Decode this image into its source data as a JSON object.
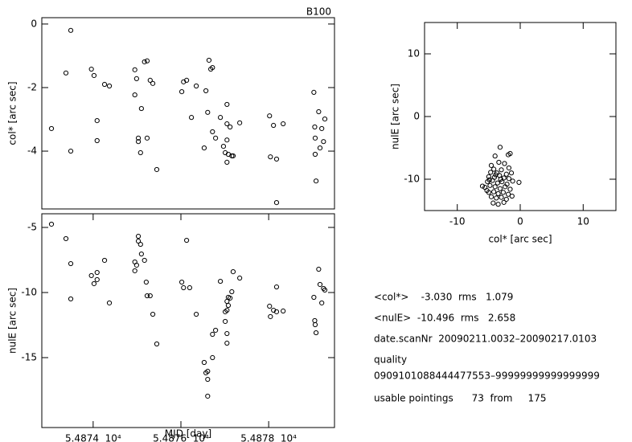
{
  "chart_data": [
    {
      "type": "scatter",
      "title": "B100",
      "y_label": "col* [arc sec]",
      "x": [
        54873.05,
        54873.38,
        54873.49,
        54873.49,
        54873.96,
        54874.02,
        54874.09,
        54874.09,
        54874.26,
        54874.37,
        54874.95,
        54874.95,
        54874.99,
        54875.03,
        54875.03,
        54875.08,
        54875.1,
        54875.17,
        54875.23,
        54875.23,
        54875.3,
        54875.36,
        54875.45,
        54876.02,
        54876.06,
        54876.13,
        54876.24,
        54876.35,
        54876.53,
        54876.57,
        54876.61,
        54876.64,
        54876.68,
        54876.72,
        54876.72,
        54876.79,
        54876.9,
        54876.97,
        54877.01,
        54877.05,
        54877.05,
        54877.05,
        54877.05,
        54877.08,
        54877.12,
        54877.16,
        54877.19,
        54877.34,
        54878.02,
        54878.04,
        54878.11,
        54878.18,
        54878.18,
        54878.33,
        54879.03,
        54879.05,
        54879.06,
        54879.06,
        54879.08,
        54879.14,
        54879.17,
        54879.21,
        54879.25,
        54879.28
      ],
      "values": [
        -3.29,
        -1.54,
        -0.2,
        -4.0,
        -1.42,
        -1.62,
        -3.04,
        -3.67,
        -1.9,
        -1.95,
        -1.44,
        -2.23,
        -1.72,
        -3.59,
        -3.7,
        -4.05,
        -2.66,
        -1.19,
        -1.16,
        -3.59,
        -1.77,
        -1.87,
        -4.58,
        -2.13,
        -1.82,
        -1.77,
        -2.94,
        -1.95,
        -3.9,
        -2.1,
        -2.78,
        -1.14,
        -1.42,
        -1.37,
        -3.39,
        -3.59,
        -2.94,
        -3.85,
        -4.05,
        -2.53,
        -3.14,
        -3.65,
        -4.35,
        -4.1,
        -3.24,
        -4.15,
        -4.15,
        -3.11,
        -2.89,
        -4.18,
        -3.19,
        -4.25,
        -5.62,
        -3.14,
        -2.15,
        -3.24,
        -3.59,
        -4.1,
        -4.94,
        -2.76,
        -3.9,
        -3.29,
        -3.7,
        -2.99
      ],
      "xlim": [
        54872.83,
        54879.5
      ],
      "ylim": [
        -5.82,
        0.2
      ],
      "yticks": [
        0,
        -2,
        -4
      ]
    },
    {
      "type": "scatter",
      "x_label": "MJD [day]",
      "y_label": "nulE [arc sec]",
      "x": [
        54873.05,
        54873.38,
        54873.49,
        54873.49,
        54873.96,
        54874.02,
        54874.09,
        54874.09,
        54874.26,
        54874.37,
        54874.95,
        54874.95,
        54874.99,
        54875.03,
        54875.03,
        54875.08,
        54875.1,
        54875.17,
        54875.21,
        54875.23,
        54875.3,
        54875.36,
        54875.45,
        54876.02,
        54876.06,
        54876.13,
        54876.2,
        54876.35,
        54876.53,
        54876.57,
        54876.61,
        54876.61,
        54876.61,
        54876.72,
        54876.72,
        54876.79,
        54876.9,
        54877.01,
        54877.01,
        54877.05,
        54877.05,
        54877.05,
        54877.05,
        54877.08,
        54877.08,
        54877.12,
        54877.16,
        54877.19,
        54877.34,
        54878.02,
        54878.04,
        54878.11,
        54878.18,
        54878.18,
        54878.33,
        54879.03,
        54879.05,
        54879.06,
        54879.08,
        54879.14,
        54879.17,
        54879.21,
        54879.25,
        54879.28
      ],
      "values": [
        -4.75,
        -5.86,
        -7.78,
        -10.49,
        -8.7,
        -9.32,
        -8.46,
        -9.01,
        -7.53,
        -10.8,
        -7.65,
        -8.33,
        -7.9,
        -5.68,
        -6.05,
        -6.3,
        -7.04,
        -7.53,
        -9.2,
        -10.25,
        -10.25,
        -11.67,
        -13.95,
        -9.2,
        -9.63,
        -5.99,
        -9.63,
        -11.67,
        -15.37,
        -16.17,
        -16.05,
        -16.67,
        -17.96,
        -15.0,
        -13.21,
        -12.9,
        -9.14,
        -11.48,
        -12.22,
        -10.68,
        -11.36,
        -13.15,
        -13.89,
        -10.37,
        -10.99,
        -10.43,
        -9.94,
        -8.4,
        -8.89,
        -11.05,
        -11.85,
        -11.36,
        -9.57,
        -11.48,
        -11.42,
        -10.37,
        -12.16,
        -12.47,
        -13.09,
        -8.21,
        -9.38,
        -10.8,
        -9.69,
        -9.81
      ],
      "xlim": [
        54872.83,
        54879.5
      ],
      "ylim": [
        -20.37,
        -3.95
      ],
      "xticks": [
        {
          "value": 54874,
          "label": "5.4874  10⁴"
        },
        {
          "value": 54876,
          "label": "5.4876  10⁴"
        },
        {
          "value": 54878,
          "label": "5.4878  10⁴"
        }
      ],
      "yticks": [
        -5,
        -10,
        -15
      ]
    },
    {
      "type": "scatter",
      "x_label": "col* [arc sec]",
      "y_label": "nulE [arc sec]",
      "x": [
        -3.2,
        -4.0,
        -1.6,
        -1.9,
        -4.6,
        -3.4,
        -2.5,
        -4.2,
        -3.0,
        -1.8,
        -4.7,
        -3.7,
        -2.2,
        -1.4,
        -5.0,
        -4.1,
        -3.3,
        -2.6,
        -1.8,
        -0.2,
        -6.0,
        -5.2,
        -4.4,
        -3.6,
        -2.9,
        -2.1,
        -1.2,
        -5.6,
        -4.8,
        -4.0,
        -3.2,
        -2.4,
        -1.6,
        -5.0,
        -4.2,
        -3.5,
        -2.7,
        -1.9,
        -4.6,
        -3.8,
        -3.0,
        -2.2,
        -4.3,
        -3.5,
        -2.6,
        -5.3,
        -1.3,
        -3.9,
        -4.9,
        -3.1
      ],
      "values": [
        -4.9,
        -6.3,
        -5.9,
        -6.1,
        -7.8,
        -7.3,
        -7.5,
        -8.4,
        -8.5,
        -8.2,
        -8.9,
        -9.0,
        -9.2,
        -9.0,
        -9.6,
        -9.7,
        -9.4,
        -9.8,
        -9.9,
        -10.5,
        -11.1,
        -10.4,
        -10.2,
        -10.6,
        -10.4,
        -10.8,
        -10.3,
        -11.3,
        -11.0,
        -11.2,
        -11.5,
        -11.2,
        -11.6,
        -12.1,
        -12.0,
        -12.3,
        -12.1,
        -12.4,
        -12.8,
        -13.0,
        -12.9,
        -13.2,
        -13.8,
        -14.0,
        -13.7,
        -11.8,
        -12.7,
        -9.3,
        -10.1,
        -10.0
      ],
      "xlim": [
        -15.2,
        15.2
      ],
      "ylim": [
        -15,
        15
      ],
      "xticks": [
        -10,
        0,
        10
      ],
      "yticks": [
        10,
        0,
        -10
      ]
    }
  ],
  "summary": {
    "lines": [
      "<col*>    -3.030  rms   1.079",
      "<nulE>  -10.496  rms   2.658",
      "date.scanNr  20090211.0032–20090217.0103",
      "quality",
      "0909101088444477553–99999999999999999",
      "usable pointings      73  from     175"
    ]
  }
}
